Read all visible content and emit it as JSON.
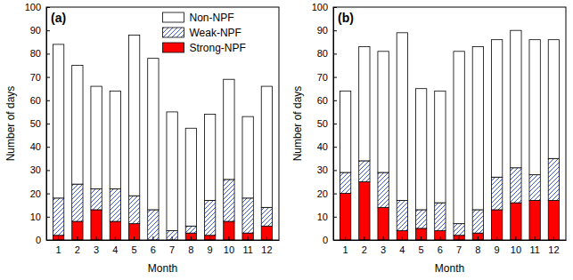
{
  "chart_data": [
    {
      "type": "bar",
      "title": "(a)",
      "x_label": "Month",
      "y_label": "Number of days",
      "stacked": true,
      "legend": "upper center",
      "categories": [
        "1",
        "2",
        "3",
        "4",
        "5",
        "6",
        "7",
        "8",
        "9",
        "10",
        "11",
        "12"
      ],
      "series": [
        {
          "name": "Strong-NPF",
          "color": "#ff0000",
          "values": [
            2,
            8,
            13,
            8,
            7,
            0,
            0,
            3,
            2,
            8,
            3,
            6
          ]
        },
        {
          "name": "Weak-NPF",
          "color": "#3b5bd6",
          "line_style": "hatch",
          "values": [
            16,
            16,
            9,
            14,
            12,
            13,
            4,
            3,
            15,
            18,
            15,
            8
          ]
        },
        {
          "name": "Non-NPF",
          "color": "#ffffff",
          "values": [
            66,
            51,
            44,
            42,
            69,
            65,
            51,
            42,
            37,
            43,
            35,
            52
          ]
        }
      ],
      "ylim": [
        0,
        100
      ],
      "yticks": [
        0,
        10,
        20,
        30,
        40,
        50,
        60,
        70,
        80,
        90,
        100
      ]
    },
    {
      "type": "bar",
      "title": "(b)",
      "x_label": "Month",
      "y_label": "Number of days",
      "stacked": true,
      "categories": [
        "1",
        "2",
        "3",
        "4",
        "5",
        "6",
        "7",
        "8",
        "9",
        "10",
        "11",
        "12"
      ],
      "series": [
        {
          "name": "Strong-NPF",
          "color": "#ff0000",
          "values": [
            20,
            25,
            14,
            4,
            5,
            4,
            2,
            3,
            13,
            16,
            17,
            17
          ]
        },
        {
          "name": "Weak-NPF",
          "color": "#3b5bd6",
          "line_style": "hatch",
          "values": [
            9,
            9,
            15,
            13,
            8,
            12,
            5,
            10,
            14,
            15,
            11,
            18
          ]
        },
        {
          "name": "Non-NPF",
          "color": "#ffffff",
          "values": [
            35,
            49,
            52,
            72,
            52,
            48,
            74,
            70,
            59,
            59,
            58,
            51
          ]
        }
      ],
      "ylim": [
        0,
        100
      ],
      "yticks": [
        0,
        10,
        20,
        30,
        40,
        50,
        60,
        70,
        80,
        90,
        100
      ]
    }
  ]
}
